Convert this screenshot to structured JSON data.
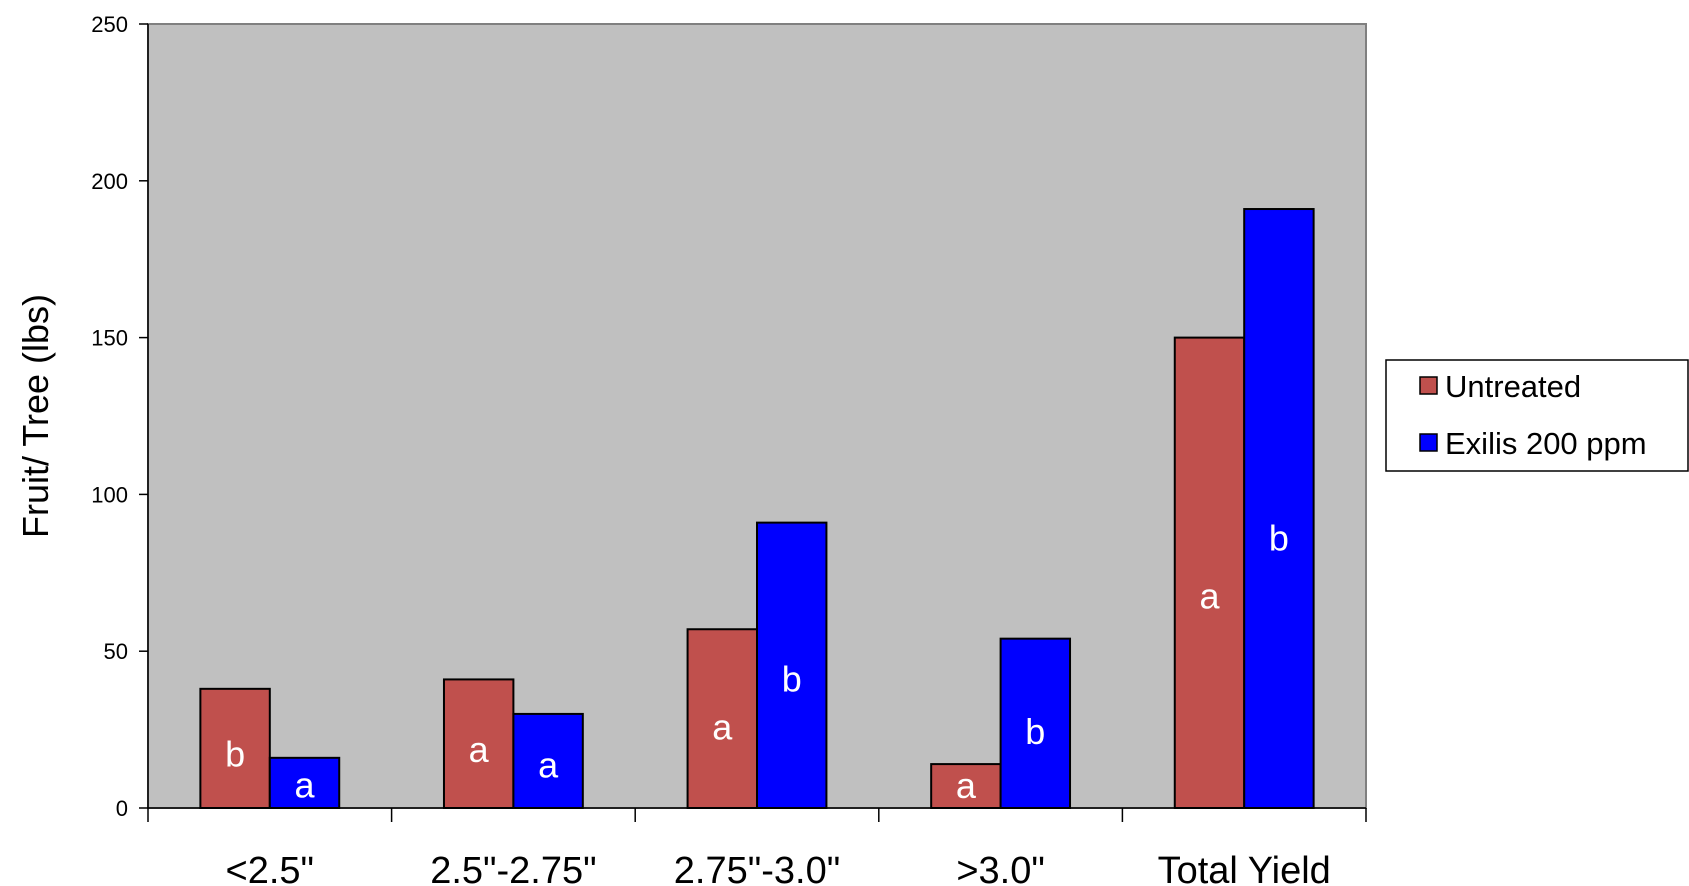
{
  "chart_data": {
    "type": "bar",
    "title": "",
    "xlabel": "",
    "ylabel": "Fruit/ Tree (lbs)",
    "ylim": [
      0,
      250
    ],
    "yticks": [
      0,
      50,
      100,
      150,
      200,
      250
    ],
    "categories": [
      "<2.5\"",
      "2.5\"-2.75\"",
      "2.75\"-3.0\"",
      ">3.0\"",
      "Total Yield"
    ],
    "series": [
      {
        "name": "Untreated",
        "color": "#c0504d",
        "values": [
          38,
          41,
          57,
          14,
          150
        ],
        "labels": [
          "b",
          "a",
          "a",
          "a",
          "a"
        ]
      },
      {
        "name": "Exilis 200 ppm",
        "color": "#0000ff",
        "values": [
          16,
          30,
          91,
          54,
          191
        ],
        "labels": [
          "a",
          "a",
          "b",
          "b",
          "b"
        ]
      }
    ],
    "plot_background": "#c0c0c0",
    "grid": false,
    "legend_position": "right"
  }
}
